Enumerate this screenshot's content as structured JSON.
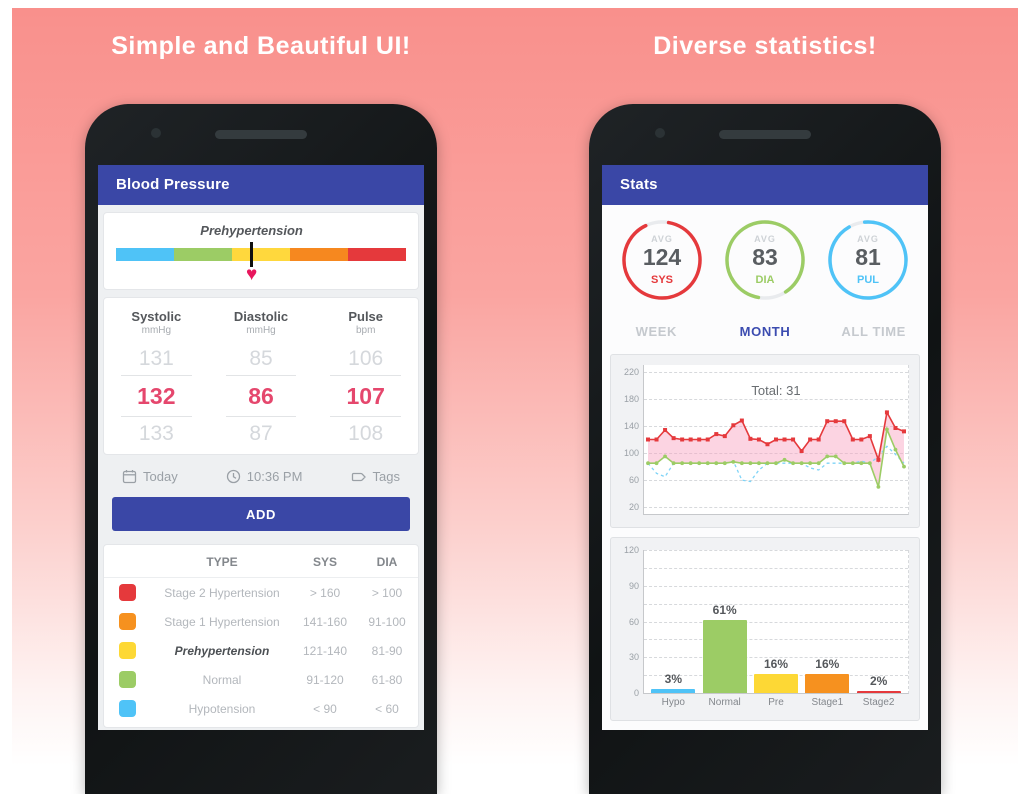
{
  "headers": {
    "left": "Simple and Beautiful UI!",
    "right": "Diverse statistics!"
  },
  "left_phone": {
    "app_title": "Blood Pressure",
    "scale": {
      "label": "Prehypertension",
      "colors": [
        "#4fc3f7",
        "#9ccc65",
        "#ffd83d",
        "#f6881f",
        "#e5393c"
      ]
    },
    "picker": {
      "columns": [
        {
          "title": "Systolic",
          "unit": "mmHg",
          "above": "131",
          "selected": "132",
          "below": "133"
        },
        {
          "title": "Diastolic",
          "unit": "mmHg",
          "above": "85",
          "selected": "86",
          "below": "87"
        },
        {
          "title": "Pulse",
          "unit": "bpm",
          "above": "106",
          "selected": "107",
          "below": "108"
        }
      ]
    },
    "meta": {
      "date": "Today",
      "time": "10:36 PM",
      "tags": "Tags"
    },
    "add_label": "ADD",
    "legend": {
      "headers": {
        "type": "TYPE",
        "sys": "SYS",
        "dia": "DIA"
      },
      "rows": [
        {
          "color": "#e5393c",
          "type": "Stage 2 Hypertension",
          "sys": "> 160",
          "dia": "> 100"
        },
        {
          "color": "#f6911f",
          "type": "Stage 1 Hypertension",
          "sys": "141-160",
          "dia": "91-100"
        },
        {
          "color": "#fdd835",
          "type": "Prehypertension",
          "sys": "121-140",
          "dia": "81-90"
        },
        {
          "color": "#9ccc65",
          "type": "Normal",
          "sys": "91-120",
          "dia": "61-80"
        },
        {
          "color": "#4fc3f7",
          "type": "Hypotension",
          "sys": "< 90",
          "dia": "< 60"
        }
      ]
    }
  },
  "right_phone": {
    "app_title": "Stats",
    "averages": [
      {
        "top": "AVG",
        "value": "124",
        "label": "SYS",
        "color": "#e5393c"
      },
      {
        "top": "AVG",
        "value": "83",
        "label": "DIA",
        "color": "#9ccc65"
      },
      {
        "top": "AVG",
        "value": "81",
        "label": "PUL",
        "color": "#4fc3f7"
      }
    ],
    "tabs": [
      {
        "label": "WEEK",
        "active": false
      },
      {
        "label": "MONTH",
        "active": true
      },
      {
        "label": "ALL TIME",
        "active": false
      }
    ]
  },
  "chart_data": [
    {
      "type": "line",
      "title": "Total: 31",
      "yticks": [
        220,
        180,
        140,
        100,
        60,
        20
      ],
      "ylim": [
        10,
        230
      ],
      "grid": "dashed",
      "legend_position": "none",
      "series": [
        {
          "name": "SYS",
          "color": "#e5393c",
          "marker": "square",
          "values": [
            120,
            120,
            134,
            122,
            120,
            120,
            120,
            120,
            128,
            125,
            141,
            148,
            121,
            120,
            113,
            120,
            120,
            120,
            103,
            120,
            120,
            147,
            147,
            147,
            120,
            120,
            125,
            90,
            160,
            137,
            132
          ]
        },
        {
          "name": "DIA",
          "color": "#9ccc65",
          "marker": "circle",
          "values": [
            85,
            85,
            95,
            85,
            85,
            85,
            85,
            85,
            85,
            85,
            87,
            85,
            85,
            85,
            85,
            85,
            90,
            85,
            85,
            85,
            85,
            95,
            95,
            85,
            85,
            85,
            85,
            50,
            135,
            105,
            80
          ]
        },
        {
          "name": "PUL",
          "color": "#7fd4f7",
          "marker": "none",
          "style": "dashed",
          "values": [
            85,
            70,
            65,
            85,
            85,
            85,
            85,
            85,
            85,
            85,
            88,
            60,
            58,
            75,
            85,
            85,
            85,
            85,
            85,
            78,
            75,
            85,
            85,
            85,
            85,
            88,
            85,
            95,
            110,
            98,
            85
          ]
        }
      ],
      "fill_between": [
        "SYS",
        "DIA"
      ],
      "fill_color": "rgba(248,160,190,0.45)"
    },
    {
      "type": "bar",
      "categories": [
        "Hypo",
        "Normal",
        "Pre",
        "Stage1",
        "Stage2"
      ],
      "values": [
        3,
        61,
        16,
        16,
        2
      ],
      "labels": [
        "3%",
        "61%",
        "16%",
        "16%",
        "2%"
      ],
      "colors": [
        "#4fc3f7",
        "#9ccc65",
        "#fdd835",
        "#f6911f",
        "#e5393c"
      ],
      "yticks": [
        120,
        90,
        60,
        30,
        0
      ],
      "ylim": [
        0,
        120
      ],
      "grid_step": 15,
      "title": "",
      "xlabel": "",
      "ylabel": ""
    }
  ]
}
